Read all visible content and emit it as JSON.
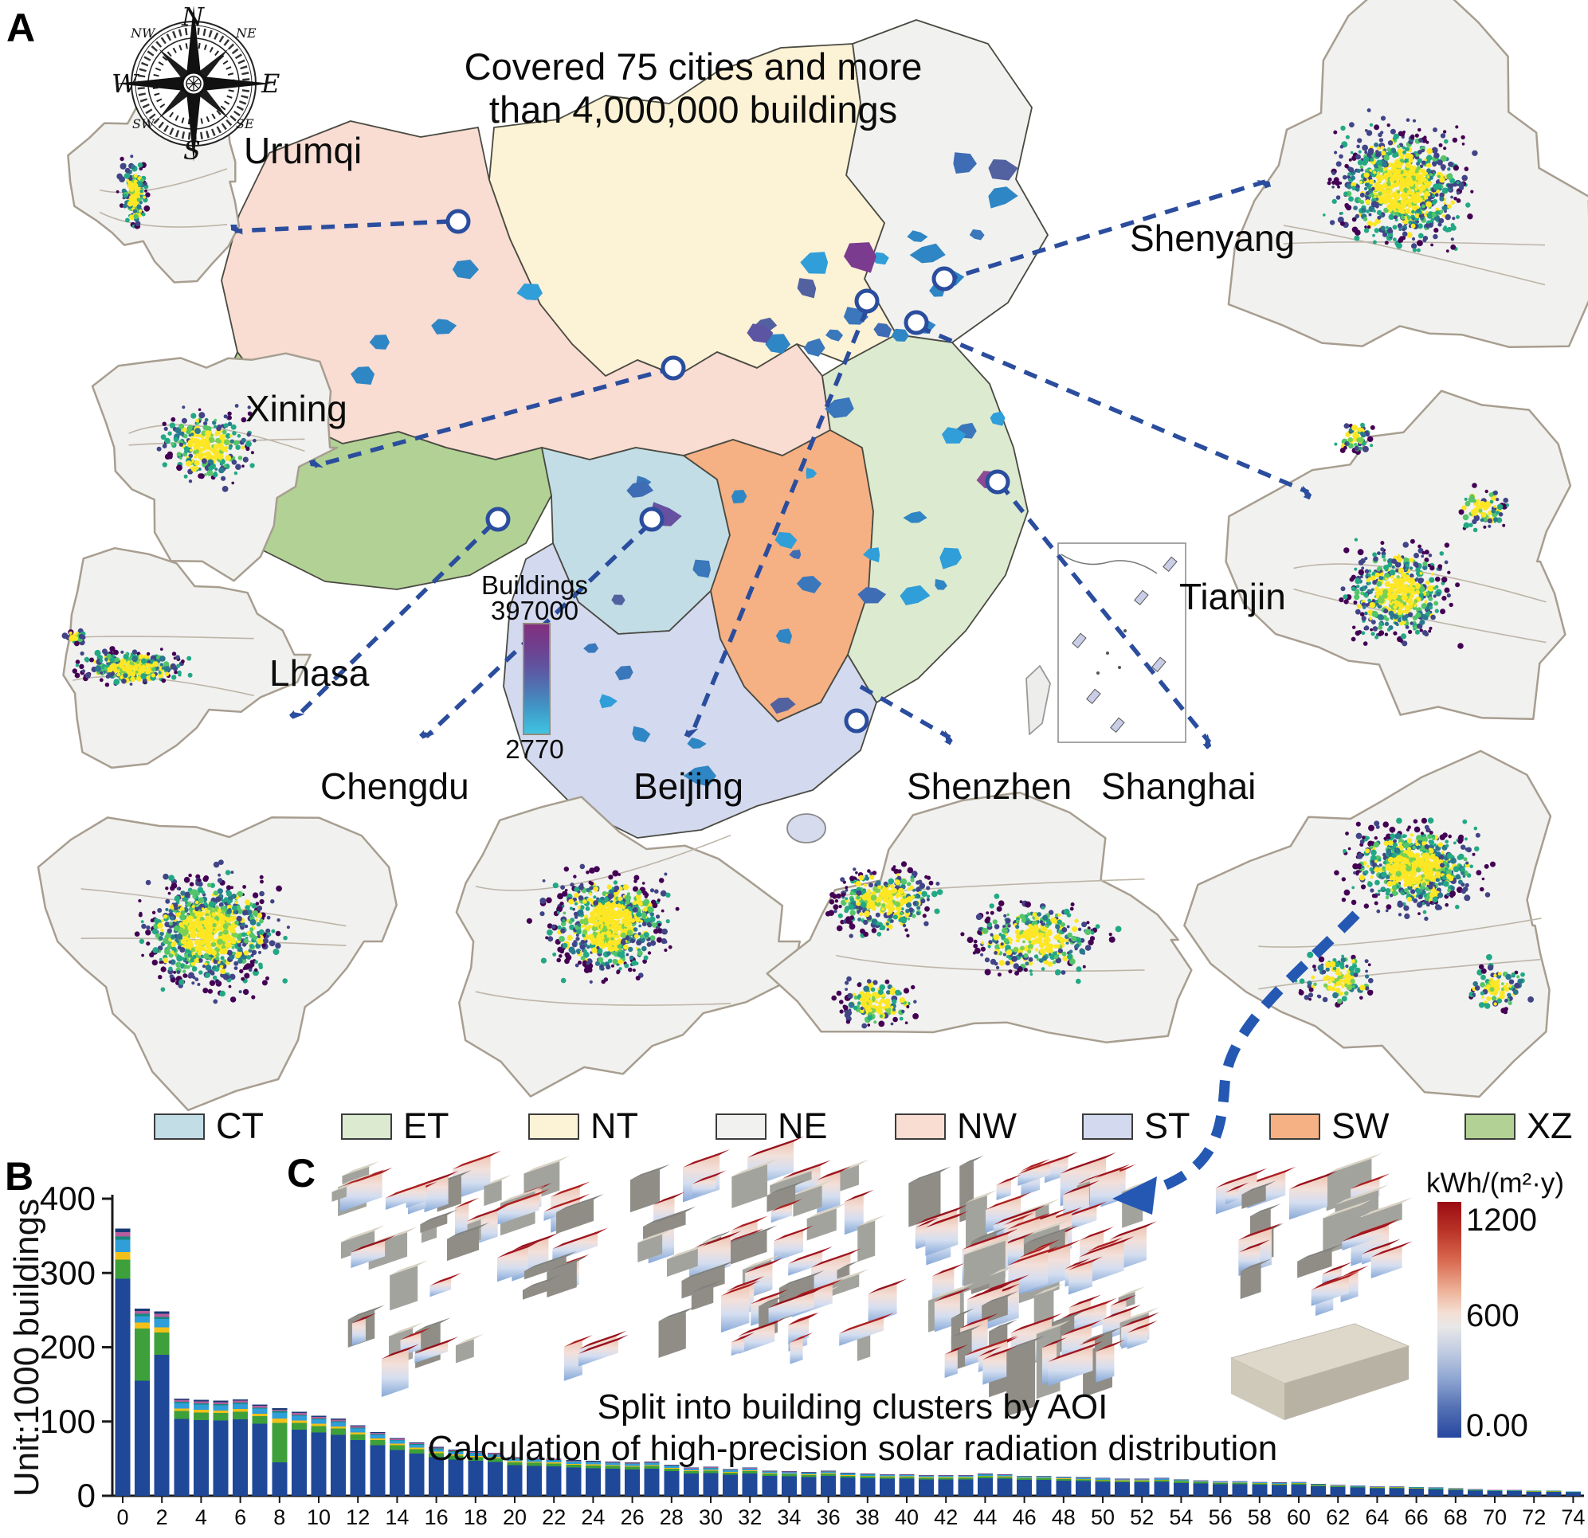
{
  "figure": {
    "panel_a": "A",
    "panel_b": "B",
    "panel_c": "C",
    "title_line1": "Covered 75 cities and more",
    "title_line2": "than 4,000,000 buildings"
  },
  "compass": {
    "n": "N",
    "e": "E",
    "s": "S",
    "w": "W",
    "nw": "NW",
    "ne": "NE",
    "sw": "SW",
    "se": "SE"
  },
  "map": {
    "cities": [
      {
        "label": "Urumqi"
      },
      {
        "label": "Xining"
      },
      {
        "label": "Lhasa"
      },
      {
        "label": "Shenyang"
      },
      {
        "label": "Tianjin"
      },
      {
        "label": "Chengdu"
      },
      {
        "label": "Beijing"
      },
      {
        "label": "Shenzhen"
      },
      {
        "label": "Shanghai"
      }
    ]
  },
  "region_legend": [
    {
      "label": "CT",
      "color": "#c2dde6"
    },
    {
      "label": "ET",
      "color": "#dcead0"
    },
    {
      "label": "NT",
      "color": "#fcf2d5"
    },
    {
      "label": "NE",
      "color": "#f1f1ef"
    },
    {
      "label": "NW",
      "color": "#f9dcd2"
    },
    {
      "label": "ST",
      "color": "#d3d9ee"
    },
    {
      "label": "SW",
      "color": "#f5b183"
    },
    {
      "label": "XZ",
      "color": "#b2d295"
    }
  ],
  "buildings_colorbar": {
    "title": "Buildings",
    "max_label": "397000",
    "min_label": "2770",
    "top_color": "#82307e",
    "bottom_color": "#41c4e2"
  },
  "chart_data": {
    "type": "bar",
    "stacked": true,
    "title": "",
    "xlabel": "",
    "ylabel": "Unit:1000 buildings",
    "ylim": [
      0,
      400
    ],
    "yticks": [
      0,
      100,
      200,
      300,
      400
    ],
    "xticks": [
      0,
      2,
      4,
      6,
      8,
      10,
      12,
      14,
      16,
      18,
      20,
      22,
      24,
      26,
      28,
      30,
      32,
      34,
      36,
      38,
      40,
      42,
      44,
      46,
      48,
      50,
      52,
      54,
      56,
      58,
      60,
      62,
      64,
      66,
      68,
      70,
      72,
      74
    ],
    "x_range": [
      0,
      74
    ],
    "totals": [
      360,
      252,
      248,
      131,
      129,
      128,
      130,
      123,
      118,
      113,
      108,
      104,
      95,
      86,
      78,
      72,
      66,
      62,
      60,
      58,
      52,
      51,
      50,
      48,
      47,
      46,
      45,
      46,
      42,
      38,
      39,
      36,
      38,
      34,
      33,
      32,
      34,
      31,
      30,
      29,
      29,
      28,
      28,
      28,
      30,
      29,
      27,
      27,
      26,
      25,
      24,
      23,
      23,
      24,
      22,
      21,
      20,
      20,
      19,
      18,
      19,
      16,
      15,
      14,
      13,
      13,
      12,
      11,
      10,
      9,
      8,
      8,
      7,
      7,
      6
    ],
    "stack_colors": [
      {
        "name": "dark-blue",
        "color": "#1f4899"
      },
      {
        "name": "green",
        "color": "#3da03a"
      },
      {
        "name": "yellow",
        "color": "#f3c019"
      },
      {
        "name": "light-blue",
        "color": "#2f9ed9"
      },
      {
        "name": "teal",
        "color": "#14897c"
      },
      {
        "name": "magenta",
        "color": "#b55d9e"
      },
      {
        "name": "navy",
        "color": "#173a75"
      }
    ],
    "default_fractions": [
      0.79,
      0.08,
      0.028,
      0.055,
      0.012,
      0.02,
      0.015
    ],
    "overrides": {
      "0": [
        292,
        26,
        10,
        17,
        4,
        6,
        5
      ],
      "1": [
        155,
        70,
        8,
        9,
        3,
        4,
        3
      ],
      "2": [
        190,
        30,
        7,
        11,
        3,
        4,
        3
      ],
      "8": [
        45,
        53,
        6,
        8,
        2,
        2,
        2
      ]
    }
  },
  "panel_c": {
    "caption_line1": "Split into building clusters  by AOI",
    "caption_line2": "Calculation of high-precision solar radiation distribution",
    "colorbar": {
      "title": "kWh/(m²·y)",
      "max_label": "1200",
      "mid_label": "600",
      "min_label": "0.00",
      "max_color": "#9a0c13",
      "min_color": "#27479f"
    }
  }
}
